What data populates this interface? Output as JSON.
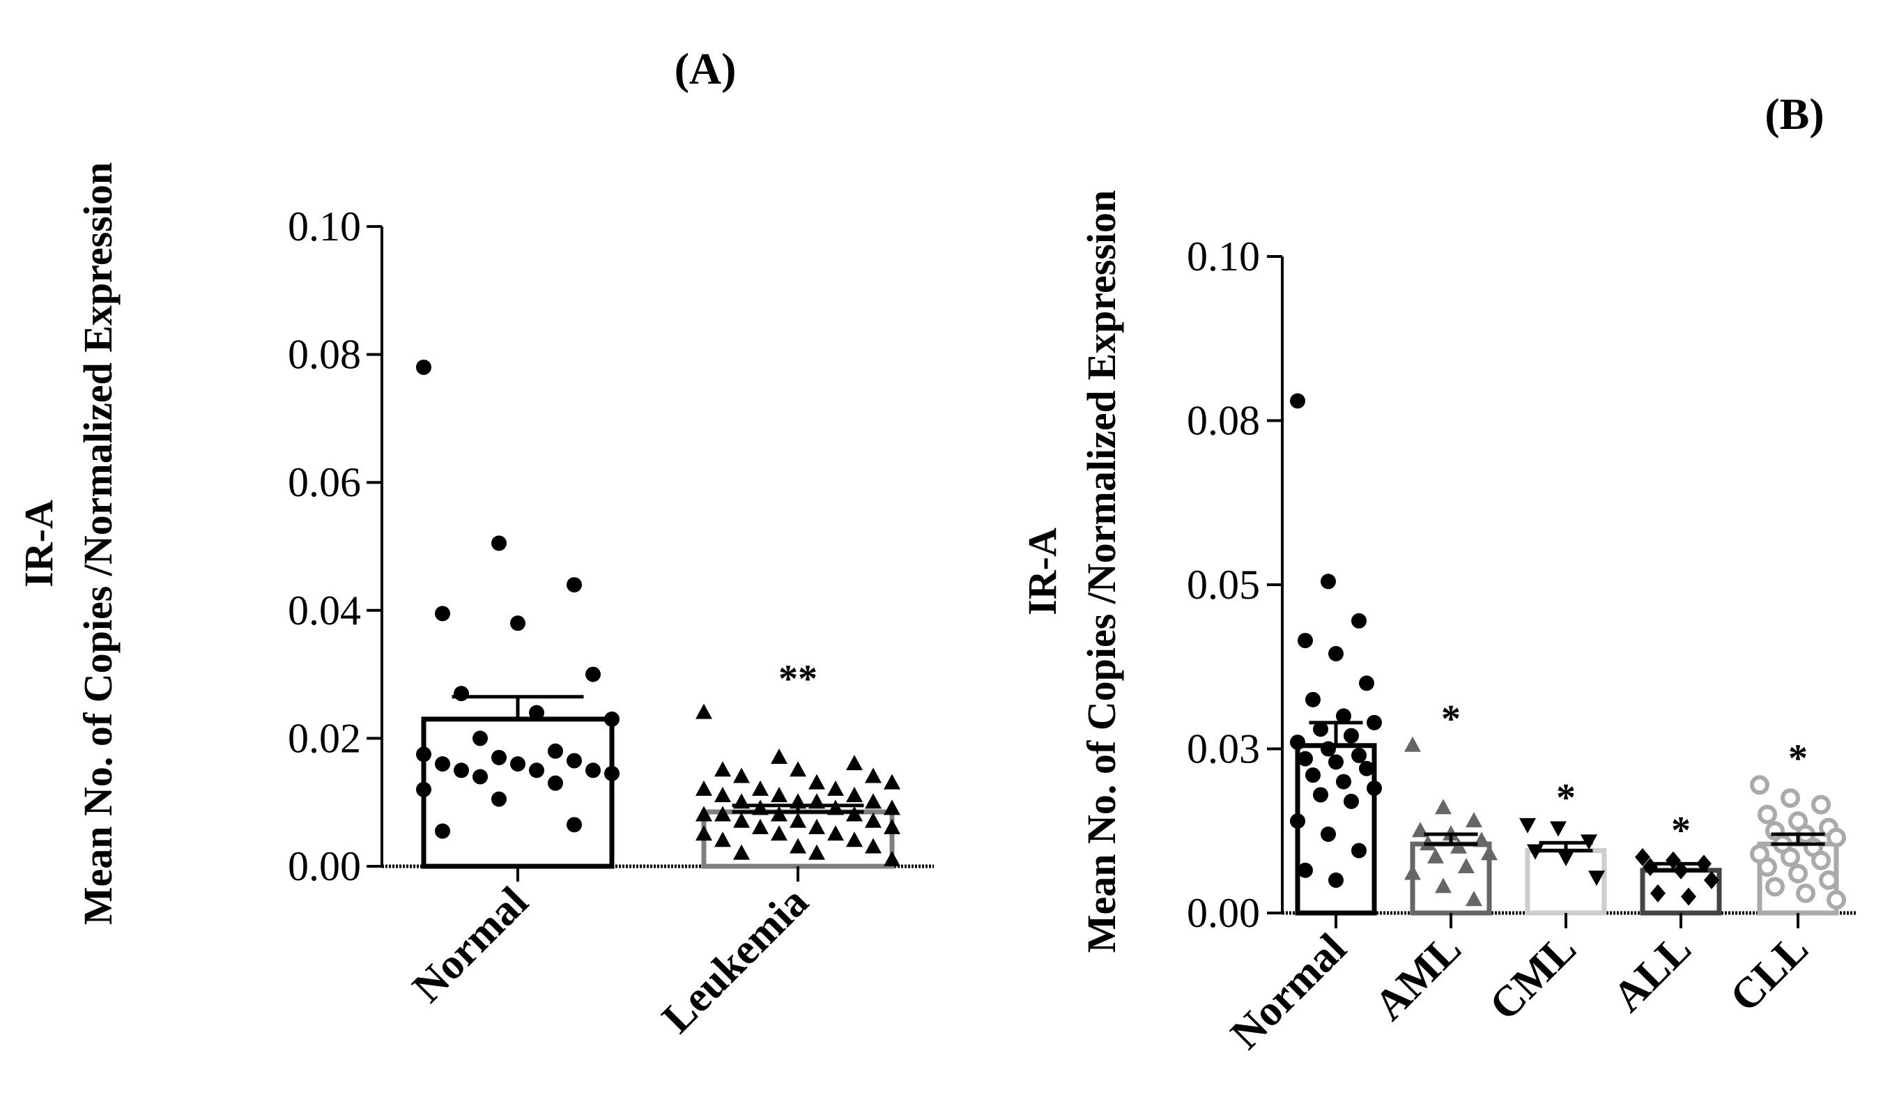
{
  "chart_data": [
    {
      "id": "A",
      "type": "bar",
      "title": "(A)",
      "ylabel_line1": "IR-A",
      "ylabel_line2": "Mean No. of Copies /Normalized Expression",
      "xlabel": "",
      "ylim": [
        0,
        0.1
      ],
      "yticks": [
        "0.00",
        "0.02",
        "0.04",
        "0.06",
        "0.08",
        "0.10"
      ],
      "categories": [
        "Normal",
        "Leukemia"
      ],
      "means": [
        0.023,
        0.0085
      ],
      "sem": [
        0.0035,
        0.001
      ],
      "significance": [
        "",
        "**"
      ],
      "colors": [
        "#000000",
        "#7f7f7f"
      ],
      "markers": [
        "circle",
        "triangle"
      ],
      "points": [
        [
          0.078,
          0.0505,
          0.044,
          0.0395,
          0.038,
          0.03,
          0.027,
          0.024,
          0.023,
          0.02,
          0.018,
          0.0175,
          0.017,
          0.0165,
          0.016,
          0.016,
          0.015,
          0.015,
          0.015,
          0.0145,
          0.014,
          0.013,
          0.012,
          0.0105,
          0.0065,
          0.0055
        ],
        [
          0.024,
          0.017,
          0.016,
          0.015,
          0.015,
          0.014,
          0.014,
          0.013,
          0.013,
          0.012,
          0.012,
          0.012,
          0.011,
          0.011,
          0.011,
          0.01,
          0.01,
          0.01,
          0.01,
          0.009,
          0.009,
          0.009,
          0.008,
          0.008,
          0.008,
          0.008,
          0.007,
          0.007,
          0.007,
          0.006,
          0.006,
          0.006,
          0.005,
          0.005,
          0.005,
          0.004,
          0.004,
          0.003,
          0.003,
          0.002,
          0.002,
          0.001
        ]
      ]
    },
    {
      "id": "B",
      "type": "bar",
      "title": "(B)",
      "ylabel_line1": "IR-A",
      "ylabel_line2": "Mean No. of Copies /Normalized Expression",
      "xlabel": "",
      "ylim": [
        0,
        0.1
      ],
      "yticks": [
        "0.00",
        "0.03",
        "0.05",
        "0.08",
        "0.10"
      ],
      "ytick_values": [
        0,
        0.025,
        0.05,
        0.075,
        0.1
      ],
      "categories": [
        "Normal",
        "AML",
        "CML",
        "ALL",
        "CLL"
      ],
      "means": [
        0.0255,
        0.0105,
        0.0095,
        0.0065,
        0.0105
      ],
      "sem": [
        0.0035,
        0.0015,
        0.0012,
        0.001,
        0.0015
      ],
      "significance": [
        "",
        "*",
        "*",
        "*",
        "*"
      ],
      "colors": [
        "#000000",
        "#666666",
        "#cccccc",
        "#444444",
        "#aaaaaa"
      ],
      "markers": [
        "circle",
        "triangle",
        "triangle-down",
        "diamond",
        "open-circle"
      ],
      "points": [
        [
          0.078,
          0.0505,
          0.0445,
          0.0415,
          0.0395,
          0.035,
          0.0325,
          0.03,
          0.029,
          0.028,
          0.027,
          0.026,
          0.025,
          0.024,
          0.0235,
          0.023,
          0.022,
          0.021,
          0.02,
          0.019,
          0.018,
          0.017,
          0.014,
          0.012,
          0.0095,
          0.0065,
          0.005
        ],
        [
          0.0255,
          0.016,
          0.014,
          0.0125,
          0.012,
          0.011,
          0.0105,
          0.01,
          0.009,
          0.0085,
          0.007,
          0.006,
          0.004,
          0.002
        ],
        [
          0.0135,
          0.013,
          0.011,
          0.0095,
          0.0085,
          0.0055
        ],
        [
          0.0085,
          0.008,
          0.0075,
          0.007,
          0.0065,
          0.005,
          0.003,
          0.0025
        ],
        [
          0.0195,
          0.0175,
          0.0165,
          0.015,
          0.014,
          0.013,
          0.0125,
          0.012,
          0.0115,
          0.0105,
          0.01,
          0.009,
          0.0085,
          0.008,
          0.007,
          0.006,
          0.005,
          0.004,
          0.003,
          0.002
        ]
      ]
    }
  ]
}
